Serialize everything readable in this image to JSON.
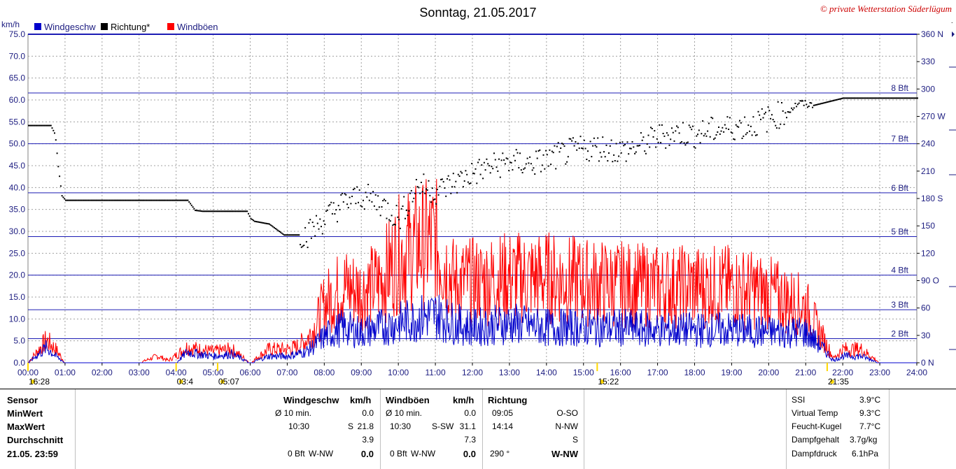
{
  "title": "Sonntag, 21.05.2017",
  "copyright": "© private Wetterstation Süderlügum",
  "legend": [
    {
      "name": "Windgeschw",
      "color": "#0000cc"
    },
    {
      "name": "Richtung*",
      "color": "#000000"
    },
    {
      "name": "Windböen",
      "color": "#ff0000"
    }
  ],
  "colors": {
    "speed": "#0000cc",
    "direction": "#000000",
    "gust": "#ff0000",
    "bft_line": "#1c1cb4",
    "axis_text": "#1c1c80"
  },
  "chart_data": {
    "type": "line",
    "ylabel": "km/h",
    "ylim": [
      0,
      75
    ],
    "y_ticks": [
      "0.0",
      "5.0",
      "10.0",
      "15.0",
      "20.0",
      "25.0",
      "30.0",
      "35.0",
      "40.0",
      "45.0",
      "50.0",
      "55.0",
      "60.0",
      "65.0",
      "70.0",
      "75.0"
    ],
    "x_ticks": [
      "00:00",
      "01:00",
      "02:00",
      "03:00",
      "04:00",
      "05:00",
      "06:00",
      "07:00",
      "08:00",
      "09:00",
      "10:00",
      "11:00",
      "12:00",
      "13:00",
      "14:00",
      "15:00",
      "16:00",
      "17:00",
      "18:00",
      "19:00",
      "20:00",
      "21:00",
      "22:00",
      "23:00",
      "24:00"
    ],
    "y2lim": [
      0,
      360
    ],
    "y2_ticks": [
      {
        "v": 0,
        "t": "0 N"
      },
      {
        "v": 30,
        "t": "30"
      },
      {
        "v": 60,
        "t": "60"
      },
      {
        "v": 90,
        "t": "90 O"
      },
      {
        "v": 120,
        "t": "120"
      },
      {
        "v": 150,
        "t": "150"
      },
      {
        "v": 180,
        "t": "180 S"
      },
      {
        "v": 210,
        "t": "210"
      },
      {
        "v": 240,
        "t": "240"
      },
      {
        "v": 270,
        "t": "270 W"
      },
      {
        "v": 300,
        "t": "300"
      },
      {
        "v": 330,
        "t": "330"
      },
      {
        "v": 360,
        "t": "360 N"
      }
    ],
    "bft_lines": [
      {
        "label": "2 Bft",
        "kmh": 5.5
      },
      {
        "label": "3 Bft",
        "kmh": 12.1
      },
      {
        "label": "4 Bft",
        "kmh": 20
      },
      {
        "label": "5 Bft",
        "kmh": 28.8
      },
      {
        "label": "6 Bft",
        "kmh": 38.8
      },
      {
        "label": "7 Bft",
        "kmh": 50
      },
      {
        "label": "8 Bft",
        "kmh": 61.6
      }
    ],
    "series": [
      {
        "name": "Windgeschw",
        "kind": "speed",
        "x": [
          0.0,
          0.5,
          0.75,
          1.0,
          1.5,
          2.0,
          3.0,
          4.0,
          4.3,
          4.6,
          5.0,
          5.5,
          6.0,
          6.5,
          7.0,
          7.5,
          7.75,
          8.0,
          8.5,
          9.0,
          9.5,
          10.0,
          10.5,
          11.0,
          11.5,
          12.0,
          13.0,
          14.0,
          15.0,
          16.0,
          17.0,
          18.0,
          19.0,
          20.0,
          21.0,
          21.5,
          21.75,
          22.0,
          22.5,
          23.0,
          23.5,
          24.0
        ],
        "y": [
          0.0,
          3.5,
          1.5,
          0.0,
          0.0,
          0.0,
          0.0,
          0.0,
          2.5,
          2.0,
          1.5,
          2.0,
          0.0,
          1.5,
          1.5,
          2.5,
          4.0,
          6.0,
          8.0,
          7.0,
          8.0,
          9.0,
          10.0,
          11.0,
          9.0,
          8.0,
          9.0,
          8.0,
          8.0,
          8.0,
          7.5,
          7.5,
          7.5,
          7.0,
          7.0,
          3.0,
          0.5,
          1.5,
          1.5,
          0.0,
          0.0,
          0.0
        ]
      },
      {
        "name": "Windböen",
        "kind": "gust",
        "x": [
          0.0,
          0.5,
          0.75,
          1.0,
          1.5,
          2.0,
          3.0,
          3.5,
          3.8,
          4.3,
          4.6,
          5.0,
          5.5,
          6.0,
          6.5,
          7.0,
          7.25,
          7.5,
          7.75,
          8.0,
          8.5,
          9.0,
          9.5,
          10.0,
          10.5,
          11.0,
          11.5,
          12.0,
          13.0,
          14.0,
          15.0,
          16.0,
          17.0,
          18.0,
          19.0,
          20.0,
          21.0,
          21.5,
          21.75,
          22.0,
          22.5,
          23.0,
          23.5,
          24.0
        ],
        "y": [
          0.0,
          5.0,
          3.0,
          0.0,
          0.0,
          0.0,
          0.0,
          1.5,
          0.5,
          3.5,
          3.0,
          2.5,
          3.0,
          0.0,
          3.0,
          3.0,
          3.5,
          5.0,
          8.0,
          13.0,
          17.0,
          16.0,
          18.0,
          24.0,
          26.0,
          27.0,
          18.0,
          18.0,
          19.0,
          19.0,
          18.0,
          17.5,
          17.0,
          17.0,
          17.0,
          15.5,
          12.5,
          5.0,
          1.0,
          3.0,
          3.0,
          0.0,
          0.0,
          0.0
        ]
      },
      {
        "name": "Richtung*",
        "kind": "direction",
        "x": [
          0.0,
          0.2,
          0.6,
          0.72,
          0.8,
          0.9,
          1.0,
          2.0,
          3.0,
          4.0,
          4.3,
          4.5,
          4.7,
          5.0,
          5.5,
          5.9,
          6.0,
          6.1,
          6.5,
          6.9,
          7.0,
          7.5,
          8.0,
          8.5,
          9.0,
          9.5,
          10.0,
          10.5,
          11.0,
          11.5,
          12.0,
          12.5,
          13.0,
          13.5,
          14.0,
          14.5,
          15.0,
          15.5,
          16.0,
          16.5,
          17.0,
          17.5,
          18.0,
          18.5,
          19.0,
          19.5,
          20.0,
          20.5,
          20.8,
          21.0,
          21.2,
          21.5,
          22.0,
          23.0,
          23.5,
          24.0
        ],
        "y": [
          260,
          260,
          260,
          250,
          215,
          183,
          178,
          178,
          178,
          178,
          178,
          167,
          166,
          166,
          166,
          166,
          158,
          155,
          152,
          140,
          140,
          140,
          158,
          175,
          183,
          175,
          158,
          195,
          188,
          197,
          208,
          215,
          220,
          218,
          222,
          230,
          235,
          236,
          232,
          237,
          248,
          252,
          250,
          255,
          258,
          260,
          268,
          275,
          285,
          283,
          282,
          285,
          290,
          290,
          290,
          290
        ]
      }
    ]
  },
  "markers": [
    {
      "time": "16:28",
      "x": 0.0
    },
    {
      "time": "03:4",
      "x": 4.0
    },
    {
      "time": "05:07",
      "x": 5.12
    },
    {
      "time": "15:22",
      "x": 15.37
    },
    {
      "time": "21:35",
      "x": 21.58
    }
  ],
  "panel": {
    "rows": [
      "Sensor",
      "MinWert",
      "MaxWert",
      "Durchschnitt",
      "21.05. 23:59"
    ],
    "wind": {
      "h1": "Windgeschw",
      "h2": "km/h",
      "min": [
        "Ø 10 min.",
        "0.0"
      ],
      "max": [
        "10:30",
        "S",
        "21.8"
      ],
      "avg": "3.9",
      "cur": [
        "0 Bft",
        "W-NW",
        "0.0"
      ]
    },
    "gust": {
      "h1": "Windböen",
      "h2": "km/h",
      "min": [
        "Ø 10 min.",
        "0.0"
      ],
      "max": [
        "10:30",
        "S-SW",
        "31.1"
      ],
      "avg": "7.3",
      "cur": [
        "0 Bft",
        "W-NW",
        "0.0"
      ]
    },
    "dir": {
      "h1": "Richtung",
      "min": [
        "09:05",
        "O-SO"
      ],
      "max": [
        "14:14",
        "N-NW"
      ],
      "avg": "S",
      "cur": [
        "290 °",
        "W-NW"
      ]
    },
    "extra": [
      {
        "label": "SSI",
        "value": "3.9°C"
      },
      {
        "label": "Virtual Temp",
        "value": "9.3°C"
      },
      {
        "label": "Feucht-Kugel",
        "value": "7.7°C"
      },
      {
        "label": "Dampfgehalt",
        "value": "3.7g/kg"
      },
      {
        "label": "Dampfdruck",
        "value": "6.1hPa"
      }
    ]
  }
}
